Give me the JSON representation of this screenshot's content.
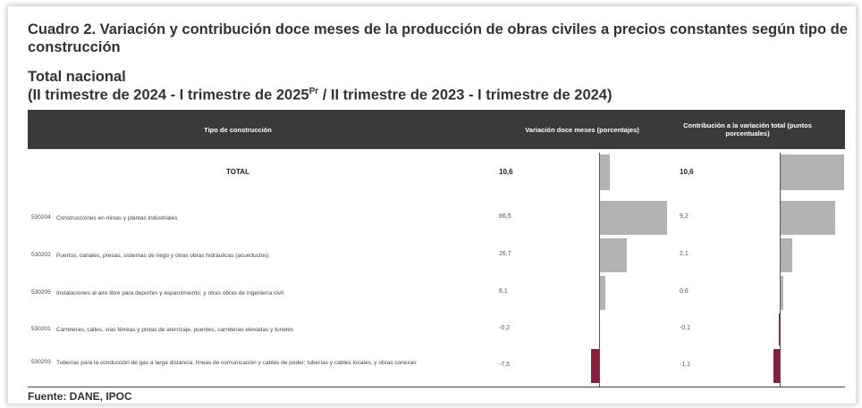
{
  "title": "Cuadro 2. Variación y contribución doce meses de la producción de obras civiles a precios constantes según tipo de construcción",
  "subtitle": "Total nacional",
  "period": {
    "before": "(II trimestre de 2024 - I trimestre de 2025",
    "sup": "Pr",
    "after": " / II trimestre de 2023 - I trimestre de 2024)"
  },
  "table": {
    "headers": [
      "Tipo de construcción",
      "Variación doce meses (porcentajes)",
      "Contribución a la variación total (puntos porcentuales)"
    ],
    "total": {
      "label": "TOTAL",
      "variacion": 10.6,
      "variacion_label": "10,6",
      "contribucion": 10.6,
      "contribucion_label": "10,6"
    },
    "rows": [
      {
        "code": "530204",
        "name": "Construcciones en minas y plantas industriales",
        "variacion": 66.5,
        "variacion_label": "66,5",
        "contribucion": 9.2,
        "contribucion_label": "9,2"
      },
      {
        "code": "530202",
        "name": "Puertos, canales, presas, sistemas de riego y otras obras hidráulicas (acueductos)",
        "variacion": 26.7,
        "variacion_label": "26,7",
        "contribucion": 2.1,
        "contribucion_label": "2,1"
      },
      {
        "code": "530205",
        "name": "Instalaciones al aire libre para deportes y esparcimiento; y otras obras de ingeniería civil",
        "variacion": 6.1,
        "variacion_label": "6,1",
        "contribucion": 0.6,
        "contribucion_label": "0,6"
      },
      {
        "code": "530201",
        "name": "Carreteras, calles, vías férreas y pistas de aterrizaje, puentes, carreteras elevadas y túneles",
        "variacion": -0.2,
        "variacion_label": "-0,2",
        "contribucion": -0.1,
        "contribucion_label": "-0,1"
      },
      {
        "code": "530203",
        "name": "Tuberías para la conducción de gas a larga distancia, líneas de comunicación y cables de poder; tuberías y cables locales, y obras conexas",
        "variacion": -7.5,
        "variacion_label": "-7,5",
        "contribucion": -1.1,
        "contribucion_label": "-1,1"
      }
    ]
  },
  "source": "Fuente: DANE, IPOC"
}
